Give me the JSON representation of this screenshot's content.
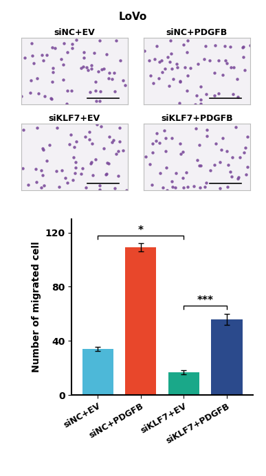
{
  "figure": {
    "title": "LoVo",
    "panels": [
      "siNC+EV",
      "siNC+PDGFB",
      "siKLF7+EV",
      "siKLF7+PDGFB"
    ]
  },
  "chart_data": {
    "type": "bar",
    "y_label": "Number of migrated cell",
    "categories": [
      "siNC+EV",
      "siNC+PDGFB",
      "siKLF7+EV",
      "siKLF7+PDGFB"
    ],
    "values": [
      34,
      109,
      17,
      56
    ],
    "errors": [
      1.5,
      3,
      1.5,
      4
    ],
    "colors": [
      "#4db8d8",
      "#e8472b",
      "#1aa889",
      "#2b4a8c"
    ],
    "ylim": [
      0,
      130
    ],
    "yticks": [
      0,
      40,
      80,
      120
    ],
    "annotations": [
      {
        "text": "*",
        "between": [
          "siNC+EV",
          "siKLF7+EV"
        ]
      },
      {
        "text": "***",
        "between": [
          "siKLF7+EV",
          "siKLF7+PDGFB"
        ]
      }
    ]
  }
}
